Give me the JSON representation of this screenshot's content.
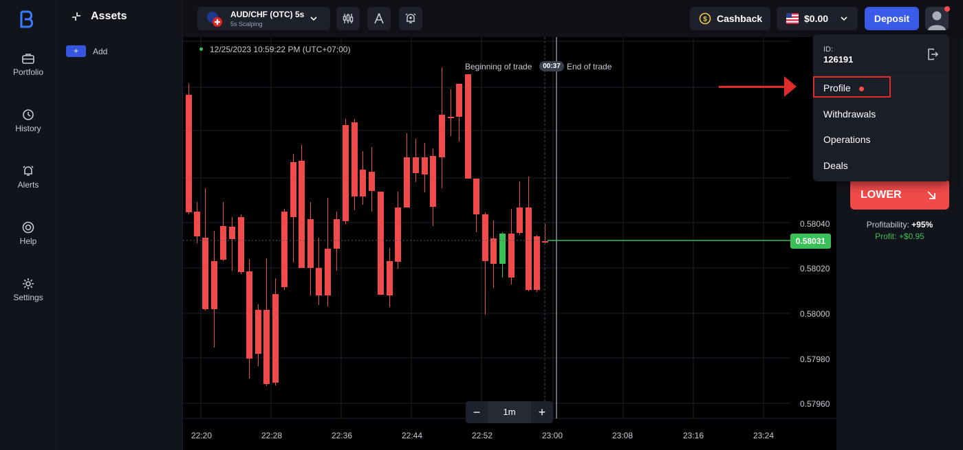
{
  "nav": {
    "items": [
      {
        "label": "Portfolio",
        "icon": "briefcase-icon"
      },
      {
        "label": "History",
        "icon": "clock-history-icon"
      },
      {
        "label": "Alerts",
        "icon": "bell-icon"
      },
      {
        "label": "Help",
        "icon": "lifebuoy-icon"
      },
      {
        "label": "Settings",
        "icon": "gear-icon"
      }
    ]
  },
  "assets": {
    "title": "Assets",
    "add_label": "Add",
    "add_button": "+"
  },
  "toolbar": {
    "asset_name": "AUD/CHF (OTC) 5s",
    "asset_sub": "5s Scalping",
    "cashback": "Cashback",
    "balance": "$0.00",
    "deposit": "Deposit"
  },
  "chart": {
    "timestamp": "12/25/2023 10:59:22 PM (UTC+07:00)",
    "beginning_of_trade": "Beginning of trade",
    "trade_timer": "00:37",
    "end_of_trade": "End of trade",
    "current_price": "0.58031",
    "price_ticks": [
      "0.58040",
      "0.58020",
      "0.58000",
      "0.57980",
      "0.57960"
    ],
    "time_ticks": [
      "22:20",
      "22:28",
      "22:36",
      "22:44",
      "22:52",
      "23:00",
      "23:08",
      "23:16",
      "23:24"
    ],
    "timeframe": "1m",
    "colors": {
      "up": "#3bbf58",
      "down": "#f04a4a"
    }
  },
  "trade": {
    "lower": "LOWER",
    "profitability_label": "Profitability:",
    "profitability_value": "+95%",
    "profit_label": "Profit:",
    "profit_value": "+$0.95"
  },
  "menu": {
    "id_label": "ID:",
    "id_value": "126191",
    "items": [
      "Profile",
      "Withdrawals",
      "Operations",
      "Deals"
    ]
  }
}
